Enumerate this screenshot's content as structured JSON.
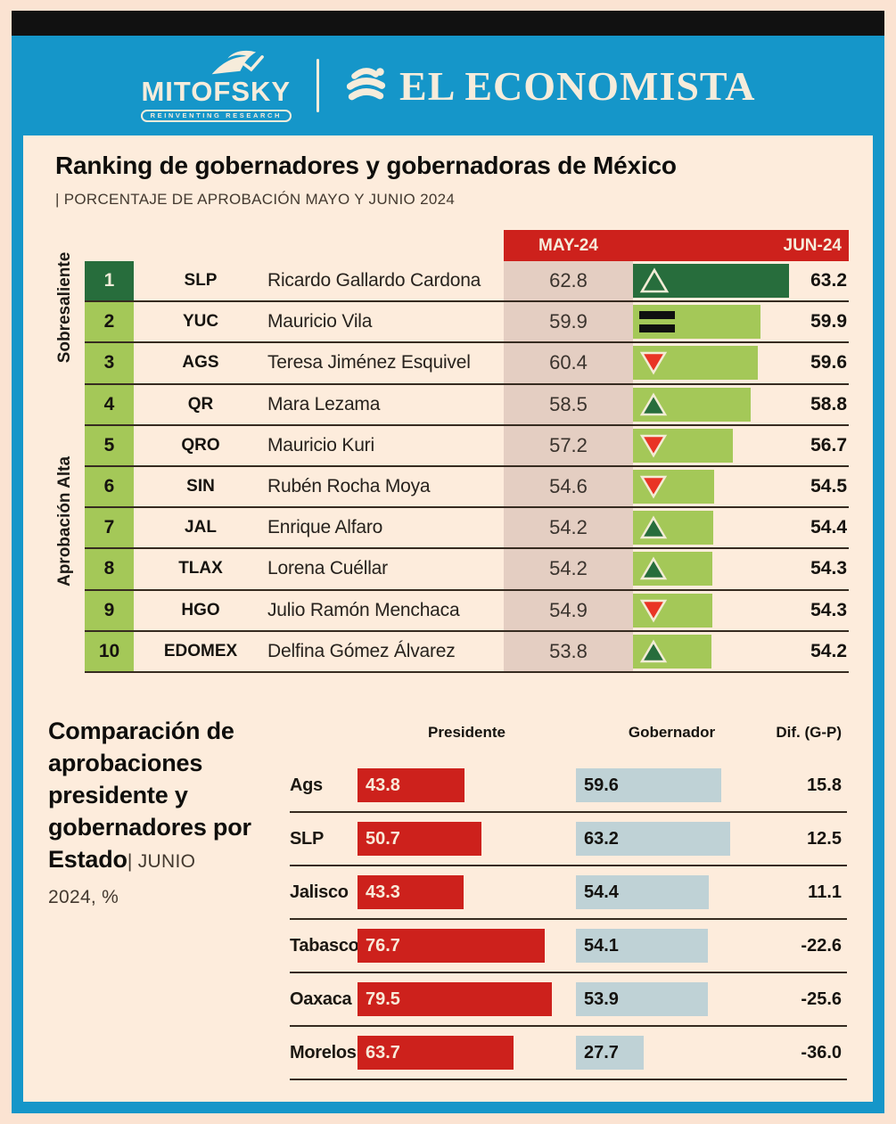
{
  "header": {
    "mitofsky_logo": "MITOFSKY",
    "mitofsky_tagline": "REINVENTING RESEARCH",
    "economista_logo": "EL ECONOMISTA"
  },
  "ranking": {
    "title": "Ranking de gobernadores y gobernadoras de México",
    "subtitle": "| PORCENTAJE DE APROBACIÓN MAYO Y JUNIO 2024",
    "col_may": "MAY-24",
    "col_jun": "JUN-24",
    "tiers": [
      "Sobresaliente",
      "Aprobación Alta"
    ],
    "rows": [
      {
        "rank": 1,
        "state": "SLP",
        "name": "Ricardo Gallardo Cardona",
        "may": 62.8,
        "jun": 63.2,
        "trend": "up-hollow"
      },
      {
        "rank": 2,
        "state": "YUC",
        "name": "Mauricio Vila",
        "may": 59.9,
        "jun": 59.9,
        "trend": "equal"
      },
      {
        "rank": 3,
        "state": "AGS",
        "name": "Teresa Jiménez Esquivel",
        "may": 60.4,
        "jun": 59.6,
        "trend": "down"
      },
      {
        "rank": 4,
        "state": "QR",
        "name": "Mara Lezama",
        "may": 58.5,
        "jun": 58.8,
        "trend": "up"
      },
      {
        "rank": 5,
        "state": "QRO",
        "name": "Mauricio Kuri",
        "may": 57.2,
        "jun": 56.7,
        "trend": "down"
      },
      {
        "rank": 6,
        "state": "SIN",
        "name": "Rubén Rocha Moya",
        "may": 54.6,
        "jun": 54.5,
        "trend": "down"
      },
      {
        "rank": 7,
        "state": "JAL",
        "name": "Enrique Alfaro",
        "may": 54.2,
        "jun": 54.4,
        "trend": "up"
      },
      {
        "rank": 8,
        "state": "TLAX",
        "name": "Lorena Cuéllar",
        "may": 54.2,
        "jun": 54.3,
        "trend": "up"
      },
      {
        "rank": 9,
        "state": "HGO",
        "name": "Julio Ramón Menchaca",
        "may": 54.9,
        "jun": 54.3,
        "trend": "down"
      },
      {
        "rank": 10,
        "state": "EDOMEX",
        "name": "Delfina Gómez Álvarez",
        "may": 53.8,
        "jun": 54.2,
        "trend": "up"
      }
    ]
  },
  "comparison": {
    "title_bold": "Comparación de aprobaciones presidente y gobernadores por Estado",
    "title_light": "| JUNIO",
    "title_line2": "2024, %",
    "col_presidente": "Presidente",
    "col_gobernador": "Gobernador",
    "col_dif": "Dif. (G-P)",
    "rows": [
      {
        "state": "Ags",
        "presidente": 43.8,
        "gobernador": 59.6,
        "dif": 15.8
      },
      {
        "state": "SLP",
        "presidente": 50.7,
        "gobernador": 63.2,
        "dif": 12.5
      },
      {
        "state": "Jalisco",
        "presidente": 43.3,
        "gobernador": 54.4,
        "dif": 11.1
      },
      {
        "state": "Tabasco",
        "presidente": 76.7,
        "gobernador": 54.1,
        "dif": -22.6
      },
      {
        "state": "Oaxaca",
        "presidente": 79.5,
        "gobernador": 53.9,
        "dif": -25.6
      },
      {
        "state": "Morelos",
        "presidente": 63.7,
        "gobernador": 27.7,
        "dif": -36.0
      }
    ]
  },
  "colors": {
    "blue": "#1596c9",
    "red": "#cd211c",
    "pink": "#e4cec2",
    "dark_green": "#276d3c",
    "light_green": "#a4c858",
    "down_red": "#e93425",
    "gray_blue": "#bfd2d6",
    "beige": "#fdecdc",
    "cream": "#f6ecdb"
  },
  "chart_data": [
    {
      "type": "bar",
      "title": "Ranking de gobernadores y gobernadoras de México",
      "subtitle": "| PORCENTAJE DE APROBACIÓN MAYO Y JUNIO 2024",
      "orientation": "horizontal",
      "categories": [
        "SLP",
        "YUC",
        "AGS",
        "QR",
        "QRO",
        "SIN",
        "JAL",
        "TLAX",
        "HGO",
        "EDOMEX"
      ],
      "governors": [
        "Ricardo Gallardo Cardona",
        "Mauricio Vila",
        "Teresa Jiménez Esquivel",
        "Mara Lezama",
        "Mauricio Kuri",
        "Rubén Rocha Moya",
        "Enrique Alfaro",
        "Lorena Cuéllar",
        "Julio Ramón Menchaca",
        "Delfina Gómez Álvarez"
      ],
      "series": [
        {
          "name": "MAY-24",
          "values": [
            62.8,
            59.9,
            60.4,
            58.5,
            57.2,
            54.6,
            54.2,
            54.2,
            54.9,
            53.8
          ]
        },
        {
          "name": "JUN-24",
          "values": [
            63.2,
            59.9,
            59.6,
            58.8,
            56.7,
            54.5,
            54.4,
            54.3,
            54.3,
            54.2
          ]
        }
      ],
      "trend_vs_previous_month": [
        "up",
        "equal",
        "down",
        "up",
        "down",
        "down",
        "up",
        "up",
        "down",
        "up"
      ],
      "annotations": [
        "Sobresaliente",
        "Aprobación Alta"
      ],
      "legend_position": "top"
    },
    {
      "type": "bar",
      "title": "Comparación de aprobaciones presidente y gobernadores por Estado | JUNIO 2024, %",
      "orientation": "horizontal",
      "categories": [
        "Ags",
        "SLP",
        "Jalisco",
        "Tabasco",
        "Oaxaca",
        "Morelos"
      ],
      "series": [
        {
          "name": "Presidente",
          "values": [
            43.8,
            50.7,
            43.3,
            76.7,
            79.5,
            63.7
          ]
        },
        {
          "name": "Gobernador",
          "values": [
            59.6,
            63.2,
            54.4,
            54.1,
            53.9,
            27.7
          ]
        },
        {
          "name": "Dif. (G-P)",
          "values": [
            15.8,
            12.5,
            11.1,
            -22.6,
            -25.6,
            -36.0
          ]
        }
      ],
      "legend_position": "top"
    }
  ]
}
